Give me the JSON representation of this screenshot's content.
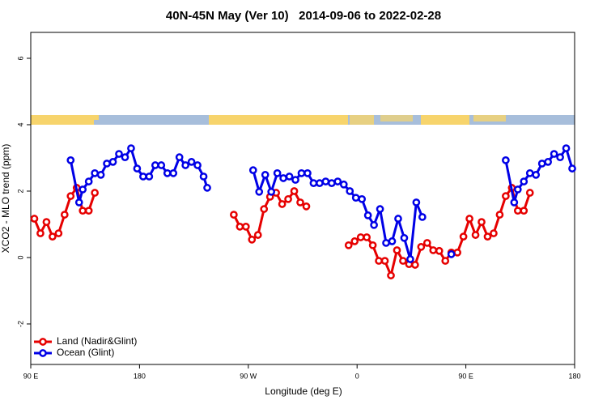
{
  "chart_data": {
    "type": "line",
    "title": "40N-45N May (Ver 10)   2014-09-06 to 2022-02-28",
    "x_label": "Longitude (deg E)",
    "y_label": "XCO2 - MLO trend (ppm)",
    "xlim": [
      90,
      540
    ],
    "xticks": [
      {
        "value": 90,
        "label": "90 E"
      },
      {
        "value": 180,
        "label": "180"
      },
      {
        "value": 270,
        "label": "90 W"
      },
      {
        "value": 360,
        "label": "0"
      },
      {
        "value": 450,
        "label": "90 E"
      },
      {
        "value": 540,
        "label": "180"
      }
    ],
    "ylim": [
      -3.22,
      6.78
    ],
    "yticks": [
      -2,
      0,
      2,
      4,
      6
    ],
    "legend": "bottom-left",
    "series": [
      {
        "name": "Land (Nadir&Glint)",
        "color": "#e60000",
        "x": [
          93,
          98,
          103,
          108,
          113,
          118,
          123,
          128,
          133,
          138,
          143,
          null,
          258,
          263,
          268,
          273,
          278,
          283,
          288,
          293,
          298,
          303,
          308,
          313,
          318,
          null,
          353,
          358,
          363,
          368,
          373,
          378,
          383,
          388,
          393,
          398,
          403,
          408,
          413,
          418,
          423,
          428,
          433,
          438,
          443,
          448,
          453,
          458,
          463,
          468,
          473,
          478,
          483,
          488,
          493,
          498,
          503
        ],
        "values": [
          1.17,
          0.73,
          1.07,
          0.63,
          0.73,
          1.29,
          1.85,
          2.1,
          1.41,
          1.41,
          1.95,
          null,
          1.29,
          0.93,
          0.93,
          0.54,
          0.68,
          1.46,
          1.83,
          1.95,
          1.61,
          1.76,
          2.0,
          1.66,
          1.54,
          null,
          0.37,
          0.49,
          0.61,
          0.61,
          0.37,
          -0.1,
          -0.1,
          -0.54,
          0.22,
          -0.1,
          -0.2,
          -0.22,
          0.32,
          0.44,
          0.22,
          0.2,
          -0.1,
          0.15,
          0.15,
          0.63,
          1.17,
          0.68,
          1.07,
          0.63,
          0.73,
          1.29,
          1.85,
          2.1,
          1.41,
          1.41,
          1.95
        ]
      },
      {
        "name": "Ocean (Glint)",
        "color": "#0000e6",
        "x": [
          123,
          130,
          133,
          138,
          143,
          148,
          153,
          158,
          163,
          168,
          173,
          178,
          183,
          188,
          193,
          198,
          203,
          208,
          213,
          218,
          223,
          228,
          233,
          236,
          null,
          274,
          279,
          284,
          289,
          294,
          299,
          304,
          309,
          314,
          319,
          324,
          329,
          334,
          339,
          344,
          349,
          354,
          359,
          364,
          369,
          374,
          379,
          384,
          389,
          394,
          399,
          404,
          409,
          414,
          null,
          438,
          null,
          483,
          490,
          493,
          498,
          503,
          508,
          513,
          518,
          523,
          528,
          533,
          538
        ],
        "values": [
          2.93,
          1.66,
          2.05,
          2.29,
          2.54,
          2.49,
          2.83,
          2.88,
          3.12,
          3.02,
          3.29,
          2.68,
          2.44,
          2.44,
          2.78,
          2.78,
          2.54,
          2.54,
          3.02,
          2.78,
          2.88,
          2.78,
          2.44,
          2.1,
          null,
          2.63,
          1.98,
          2.49,
          1.98,
          2.54,
          2.39,
          2.44,
          2.34,
          2.54,
          2.54,
          2.24,
          2.24,
          2.29,
          2.24,
          2.29,
          2.2,
          2.0,
          1.8,
          1.76,
          1.27,
          0.98,
          1.46,
          0.44,
          0.49,
          1.17,
          0.59,
          -0.05,
          1.66,
          1.22,
          null,
          0.1,
          null,
          2.93,
          1.66,
          2.05,
          2.29,
          2.54,
          2.49,
          2.83,
          2.88,
          3.12,
          3.02,
          3.29,
          2.68
        ]
      }
    ]
  }
}
